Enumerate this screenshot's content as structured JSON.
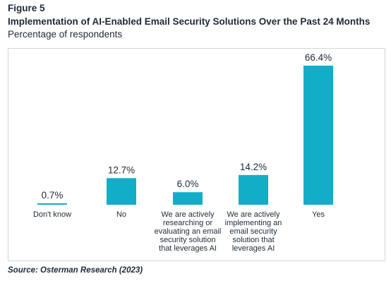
{
  "figure_label": "Figure 5",
  "title": "Implementation of AI-Enabled Email Security Solutions Over the Past 24 Months",
  "subtitle": "Percentage of respondents",
  "source": "Source: Osterman Research (2023)",
  "colors": {
    "bar": "#12aec8",
    "text": "#1f2a3a",
    "frame": "#d5d5d5"
  },
  "chart_data": {
    "type": "bar",
    "categories": [
      "Don't know",
      "No",
      "We are actively researching or evaluating an email security solution that leverages AI",
      "We are actively implementing an email security solution that leverages AI",
      "Yes"
    ],
    "category_lines": [
      [
        "Don't know"
      ],
      [
        "No"
      ],
      [
        "We are actively",
        "researching or",
        "evaluating an email",
        "security solution",
        "that leverages AI"
      ],
      [
        "We are actively",
        "implementing an",
        "email security",
        "solution that",
        "leverages AI"
      ],
      [
        "Yes"
      ]
    ],
    "values": [
      0.7,
      12.7,
      6.0,
      14.2,
      66.4
    ],
    "data_labels": [
      "0.7%",
      "12.7%",
      "6.0%",
      "14.2%",
      "66.4%"
    ],
    "title": "Implementation of AI-Enabled Email Security Solutions Over the Past 24 Months",
    "ylabel": "",
    "ylim": [
      0,
      66.4
    ],
    "grid": false,
    "legend": "none"
  }
}
